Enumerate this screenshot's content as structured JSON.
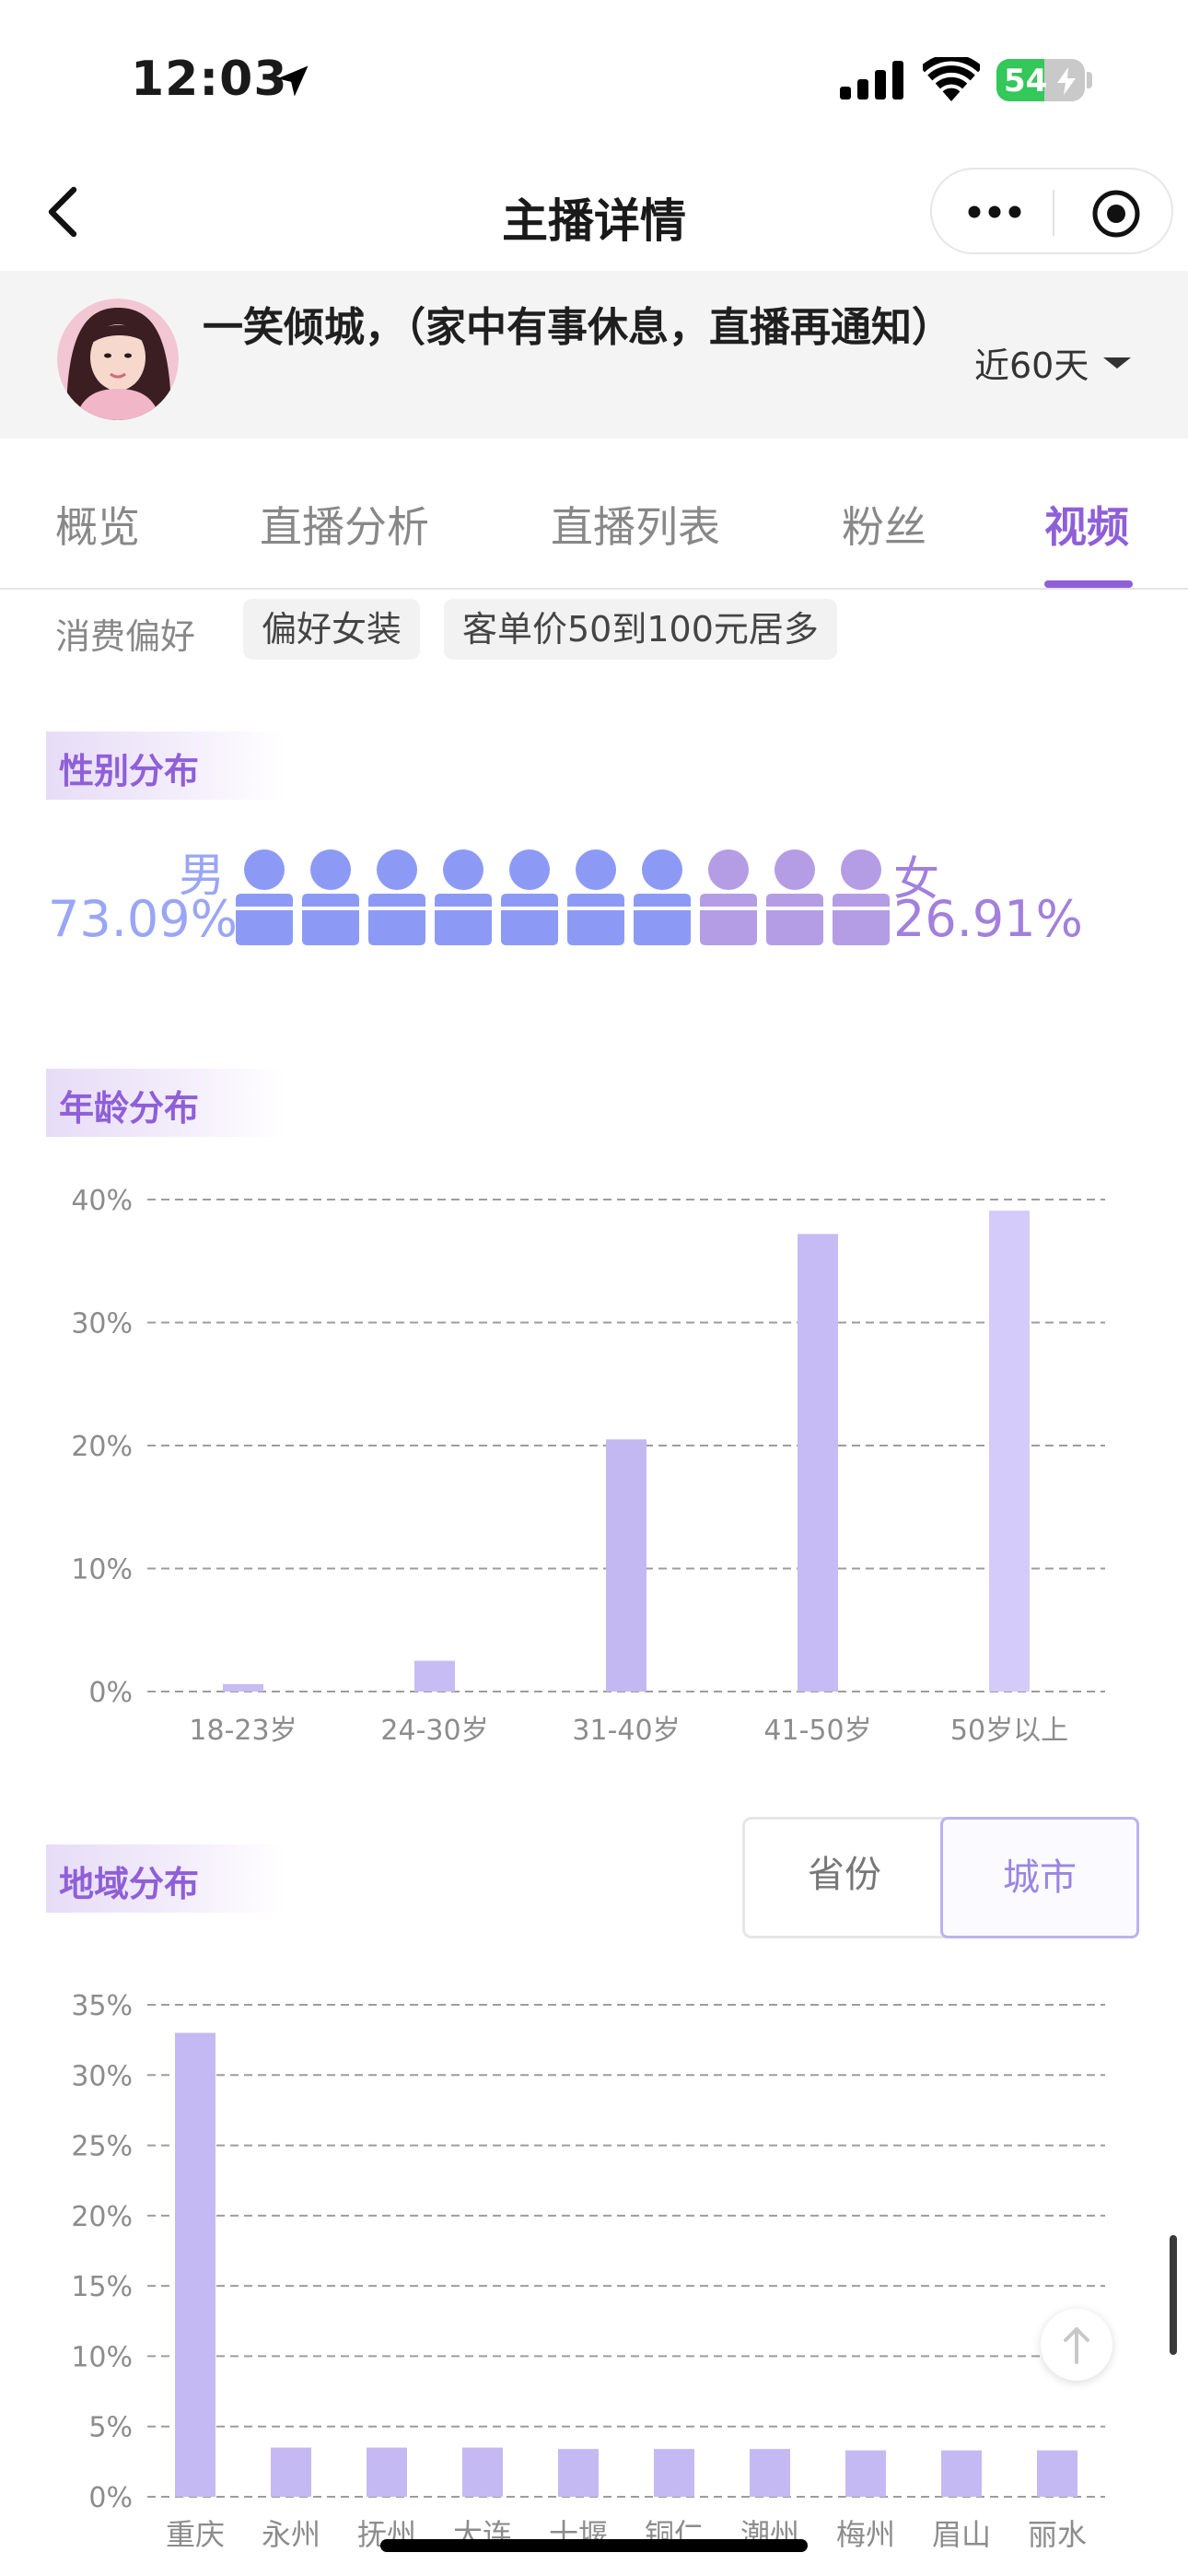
{
  "status": {
    "time": "12:03",
    "battery": "54",
    "battery_level": 0.54
  },
  "nav": {
    "title": "主播详情"
  },
  "profile": {
    "name": "一笑倾城，（家中有事休息，直播再通知）",
    "period": "近60天"
  },
  "tabs": [
    {
      "label": "概览"
    },
    {
      "label": "直播分析"
    },
    {
      "label": "直播列表"
    },
    {
      "label": "粉丝"
    },
    {
      "label": "视频"
    }
  ],
  "active_tab": "视频",
  "preference": {
    "label": "消费偏好",
    "tags": [
      "偏好女装",
      "客单价50到100元居多"
    ]
  },
  "gender": {
    "title": "性别分布",
    "male_label": "男",
    "male_pct": "73.09%",
    "female_label": "女",
    "female_pct": "26.91%",
    "icons_male": 7,
    "icons_female": 3,
    "male_color": "#8d9af5",
    "female_color": "#b59de5"
  },
  "age": {
    "title": "年龄分布"
  },
  "region": {
    "title": "地域分布",
    "toggle": [
      "省份",
      "城市"
    ],
    "active": "城市"
  },
  "chart_data": [
    {
      "type": "bar",
      "categories": [
        "18-23岁",
        "24-30岁",
        "31-40岁",
        "41-50岁",
        "50岁以上"
      ],
      "values": [
        0.6,
        2.5,
        20.5,
        37.2,
        39.1
      ],
      "y_ticks": [
        "0%",
        "10%",
        "20%",
        "30%",
        "40%"
      ],
      "ylim": [
        0,
        40
      ],
      "grid": "dashed",
      "colors": [
        "#c7bcf3",
        "#c7bcf3",
        "#c4b8f2",
        "#c6bbf4",
        "#d5cbfa"
      ]
    },
    {
      "type": "bar",
      "categories": [
        "重庆",
        "永州",
        "抚州",
        "大连",
        "十堰",
        "铜仁",
        "潮州",
        "梅州",
        "眉山",
        "丽水"
      ],
      "values": [
        33.0,
        3.5,
        3.5,
        3.5,
        3.4,
        3.4,
        3.4,
        3.3,
        3.3,
        3.3
      ],
      "y_ticks": [
        "0%",
        "5%",
        "10%",
        "15%",
        "20%",
        "25%",
        "30%",
        "35%"
      ],
      "ylim": [
        0,
        35
      ],
      "grid": "dashed",
      "colors": [
        "#c5b9f3"
      ]
    }
  ]
}
